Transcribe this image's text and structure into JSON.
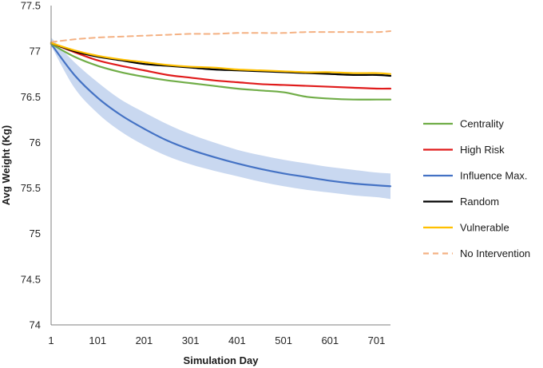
{
  "chart_data": {
    "type": "line",
    "title": "",
    "xlabel": "Simulation Day",
    "ylabel": "Avg Weight (Kg)",
    "xlim": [
      1,
      731
    ],
    "ylim": [
      74,
      77.5
    ],
    "x_ticks": [
      1,
      101,
      201,
      301,
      401,
      501,
      601,
      701
    ],
    "x_tick_labels": [
      "1",
      "101",
      "201",
      "301",
      "401",
      "501",
      "601",
      "701"
    ],
    "y_ticks": [
      74,
      74.5,
      75,
      75.5,
      76,
      76.5,
      77,
      77.5
    ],
    "y_tick_labels": [
      "74",
      "74.5",
      "75",
      "75.5",
      "76",
      "76.5",
      "77",
      "77.5"
    ],
    "legend_position": "right",
    "x": [
      1,
      51,
      101,
      151,
      201,
      251,
      301,
      351,
      401,
      451,
      501,
      551,
      601,
      651,
      701,
      731
    ],
    "series": [
      {
        "name": "Centrality",
        "color": "#70ad47",
        "dashed": false,
        "values": [
          77.08,
          76.94,
          76.84,
          76.77,
          76.72,
          76.68,
          76.65,
          76.62,
          76.59,
          76.57,
          76.55,
          76.5,
          76.48,
          76.47,
          76.47,
          76.47
        ]
      },
      {
        "name": "High Risk",
        "color": "#e01b1b",
        "dashed": false,
        "values": [
          77.09,
          76.99,
          76.9,
          76.84,
          76.79,
          76.74,
          76.71,
          76.68,
          76.66,
          76.64,
          76.63,
          76.62,
          76.61,
          76.6,
          76.59,
          76.59
        ]
      },
      {
        "name": "Influence Max.",
        "color": "#4472c4",
        "dashed": false,
        "values": [
          77.08,
          76.74,
          76.49,
          76.3,
          76.15,
          76.02,
          75.92,
          75.84,
          75.77,
          75.71,
          75.66,
          75.62,
          75.58,
          75.55,
          75.53,
          75.52
        ],
        "band_lower": [
          77.06,
          76.6,
          76.32,
          76.12,
          75.97,
          75.85,
          75.76,
          75.69,
          75.63,
          75.57,
          75.52,
          75.48,
          75.45,
          75.42,
          75.4,
          75.38
        ],
        "band_upper": [
          77.15,
          76.88,
          76.66,
          76.47,
          76.33,
          76.2,
          76.09,
          76.0,
          75.92,
          75.86,
          75.81,
          75.77,
          75.73,
          75.7,
          75.67,
          75.66
        ],
        "band_color": "#c9d8f0"
      },
      {
        "name": "Random",
        "color": "#000000",
        "dashed": false,
        "values": [
          77.09,
          77.0,
          76.94,
          76.9,
          76.86,
          76.84,
          76.82,
          76.8,
          76.79,
          76.78,
          76.77,
          76.76,
          76.75,
          76.74,
          76.74,
          76.73
        ]
      },
      {
        "name": "Vulnerable",
        "color": "#ffc000",
        "dashed": false,
        "values": [
          77.09,
          77.01,
          76.95,
          76.91,
          76.88,
          76.85,
          76.83,
          76.82,
          76.8,
          76.79,
          76.78,
          76.77,
          76.77,
          76.76,
          76.76,
          76.75
        ]
      },
      {
        "name": "No Intervention",
        "color": "#f4b183",
        "dashed": true,
        "values": [
          77.1,
          77.13,
          77.15,
          77.16,
          77.17,
          77.18,
          77.19,
          77.19,
          77.2,
          77.2,
          77.2,
          77.21,
          77.21,
          77.21,
          77.21,
          77.22
        ]
      }
    ]
  }
}
